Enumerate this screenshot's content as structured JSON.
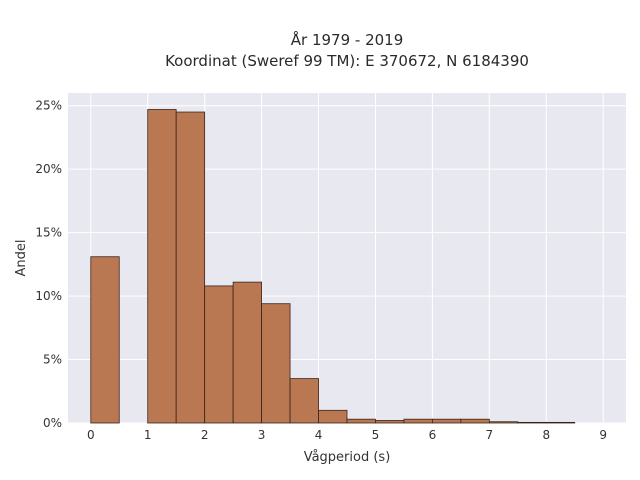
{
  "chart_data": {
    "type": "bar",
    "title_lines": [
      "År 1979 - 2019",
      "Koordinat (Sweref 99 TM): E 370672, N 6184390"
    ],
    "xlabel": "Vågperiod (s)",
    "ylabel": "Andel",
    "xlim": [
      -0.4,
      9.4
    ],
    "ylim": [
      0,
      0.26
    ],
    "x_ticks": [
      0,
      1,
      2,
      3,
      4,
      5,
      6,
      7,
      8,
      9
    ],
    "y_ticks": [
      0,
      0.05,
      0.1,
      0.15,
      0.2,
      0.25
    ],
    "y_tick_labels": [
      "0%",
      "5%",
      "10%",
      "15%",
      "20%",
      "25%"
    ],
    "bin_width": 0.5,
    "bins": [
      {
        "x0": 0.0,
        "value": 0.131
      },
      {
        "x0": 0.5,
        "value": 0.0
      },
      {
        "x0": 1.0,
        "value": 0.247
      },
      {
        "x0": 1.5,
        "value": 0.245
      },
      {
        "x0": 2.0,
        "value": 0.108
      },
      {
        "x0": 2.5,
        "value": 0.111
      },
      {
        "x0": 3.0,
        "value": 0.094
      },
      {
        "x0": 3.5,
        "value": 0.035
      },
      {
        "x0": 4.0,
        "value": 0.01
      },
      {
        "x0": 4.5,
        "value": 0.003
      },
      {
        "x0": 5.0,
        "value": 0.002
      },
      {
        "x0": 5.5,
        "value": 0.003
      },
      {
        "x0": 6.0,
        "value": 0.003
      },
      {
        "x0": 6.5,
        "value": 0.003
      },
      {
        "x0": 7.0,
        "value": 0.001
      },
      {
        "x0": 7.5,
        "value": 0.0005
      },
      {
        "x0": 8.0,
        "value": 0.0005
      }
    ],
    "grid": true,
    "colors": {
      "bar": "#b97852",
      "bar_edge": "#3b2418",
      "plot_bg": "#e8e8f0",
      "grid": "#ffffff"
    }
  }
}
